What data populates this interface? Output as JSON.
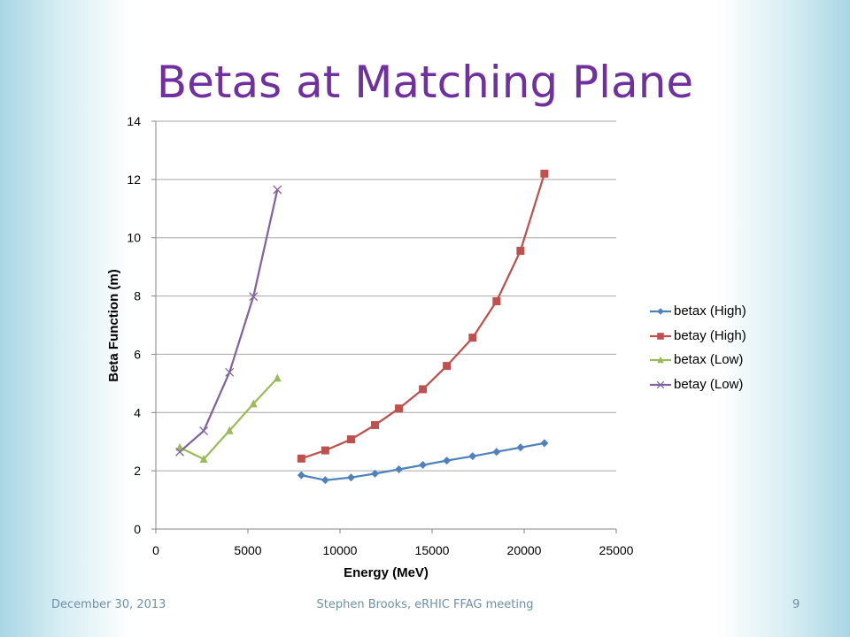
{
  "slide": {
    "title": "Betas at Matching Plane",
    "footer_date": "December 30, 2013",
    "footer_center": "Stephen Brooks, eRHIC FFAG meeting",
    "page_number": "9",
    "title_color": "#7030a0"
  },
  "chart_data": {
    "type": "line",
    "title": "",
    "xlabel": "Energy (MeV)",
    "ylabel": "Beta Function (m)",
    "xlim": [
      0,
      25000
    ],
    "ylim": [
      0,
      14
    ],
    "x_ticks": [
      0,
      5000,
      10000,
      15000,
      20000,
      25000
    ],
    "y_ticks": [
      0,
      2,
      4,
      6,
      8,
      10,
      12,
      14
    ],
    "grid": "horizontal",
    "legend_position": "right",
    "series": [
      {
        "name": "betax (High)",
        "color": "#4f81bd",
        "marker": "diamond",
        "x": [
          7900,
          9200,
          10600,
          11900,
          13200,
          14500,
          15800,
          17200,
          18500,
          19800,
          21100
        ],
        "y": [
          1.85,
          1.68,
          1.77,
          1.9,
          2.05,
          2.2,
          2.35,
          2.5,
          2.65,
          2.8,
          2.95
        ]
      },
      {
        "name": "betay (High)",
        "color": "#c0504d",
        "marker": "square",
        "x": [
          7900,
          9200,
          10600,
          11900,
          13200,
          14500,
          15800,
          17200,
          18500,
          19800,
          21100
        ],
        "y": [
          2.42,
          2.7,
          3.08,
          3.57,
          4.14,
          4.8,
          5.6,
          6.57,
          7.82,
          9.55,
          12.2
        ]
      },
      {
        "name": "betax (Low)",
        "color": "#9bbb59",
        "marker": "triangle",
        "x": [
          1300,
          2600,
          4000,
          5300,
          6600
        ],
        "y": [
          2.8,
          2.4,
          3.38,
          4.3,
          5.18
        ]
      },
      {
        "name": "betay (Low)",
        "color": "#8064a2",
        "marker": "x",
        "x": [
          1300,
          2600,
          4000,
          5300,
          6600
        ],
        "y": [
          2.65,
          3.37,
          5.38,
          7.98,
          11.65
        ]
      }
    ]
  }
}
